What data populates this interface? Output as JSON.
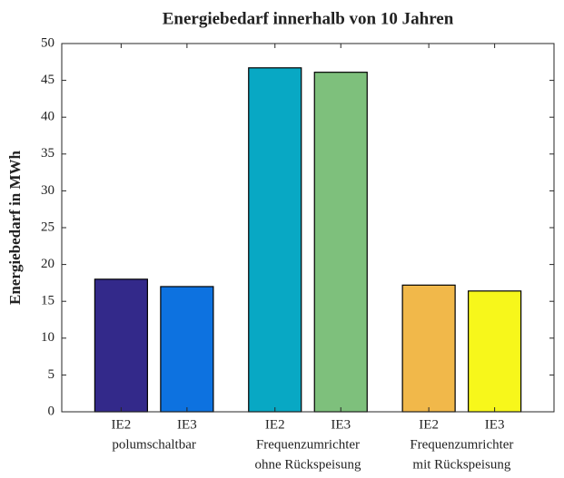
{
  "chart_data": {
    "type": "bar",
    "title": "Energiebedarf innerhalb von 10 Jahren",
    "ylabel": "Energiebedarf in MWh",
    "categories": [
      "IE2",
      "IE3",
      "IE2",
      "IE3",
      "IE2",
      "IE3"
    ],
    "group_labels": [
      [
        "polumschaltbar"
      ],
      [
        "Frequenzumrichter",
        "ohne Rückspeisung"
      ],
      [
        "Frequenzumrichter",
        "mit Rückspeisung"
      ]
    ],
    "values": [
      18.0,
      17.0,
      46.7,
      46.1,
      17.2,
      16.4
    ],
    "colors": [
      "#33298a",
      "#0d72e0",
      "#08a8c4",
      "#7ec07c",
      "#f1b84a",
      "#f7f71b"
    ],
    "ylim": [
      0,
      50
    ],
    "yticks": [
      0,
      5,
      10,
      15,
      20,
      25,
      30,
      35,
      40,
      45,
      50
    ],
    "grid": false
  }
}
